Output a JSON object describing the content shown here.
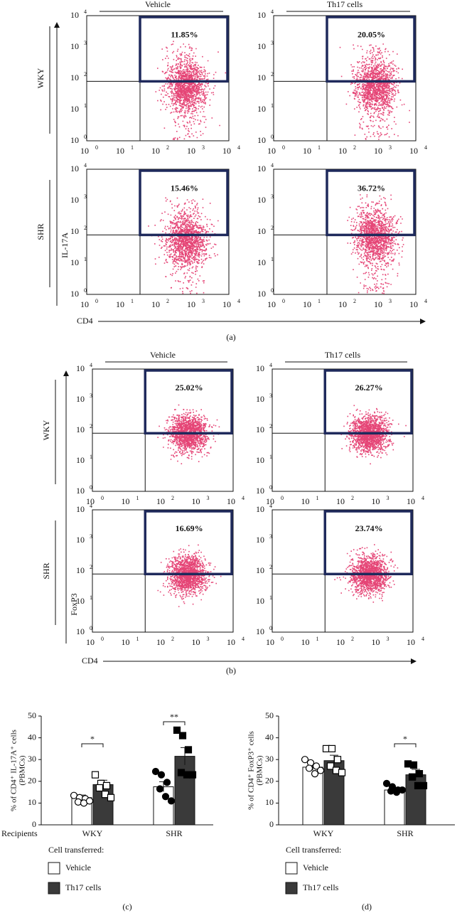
{
  "flow_axis_ticks": {
    "base": "10",
    "exponents": [
      "0",
      "1",
      "2",
      "3",
      "4"
    ]
  },
  "panel_a": {
    "headers": [
      "Vehicle",
      "Th17 cells"
    ],
    "rows": [
      "WKY",
      "SHR"
    ],
    "y_label": "IL-17A",
    "x_label": "CD4",
    "gates": [
      [
        "11.85%",
        "20.05%"
      ],
      [
        "15.46%",
        "36.72%"
      ]
    ],
    "caption": "(a)"
  },
  "panel_b": {
    "headers": [
      "Vehicle",
      "Th17 cells"
    ],
    "rows": [
      "WKY",
      "SHR"
    ],
    "y_label": "FoxP3",
    "x_label": "CD4",
    "gates": [
      [
        "25.02%",
        "26.27%"
      ],
      [
        "16.69%",
        "23.74%"
      ]
    ],
    "caption": "(b)"
  },
  "chart_data": [
    {
      "type": "bar",
      "y_label": [
        "% of CD4⁺ IL-17A⁺ cells",
        "(PBMCs)"
      ],
      "x_label": "Recipients",
      "categories": [
        "WKY",
        "SHR"
      ],
      "ylim": [
        0,
        50
      ],
      "yticks": [
        0,
        10,
        20,
        30,
        40,
        50
      ],
      "series": [
        {
          "name": "Vehicle",
          "color": "#ffffff",
          "values": [
            12.5,
            17.5
          ],
          "errors": [
            1.2,
            2.3
          ],
          "points": [
            [
              13.5,
              12.5,
              12,
              10.5,
              10,
              11
            ],
            [
              24.5,
              23,
              19.5,
              16.5,
              13,
              11
            ]
          ]
        },
        {
          "name": "Th17 cells",
          "color": "#3a3a3a",
          "values": [
            18.5,
            31.5
          ],
          "errors": [
            2,
            4
          ],
          "points": [
            [
              23,
              19,
              18,
              17,
              14,
              12.5
            ],
            [
              43.5,
              41,
              34.5,
              24,
              23,
              23
            ]
          ]
        }
      ],
      "significance": [
        "*",
        "**"
      ],
      "legend_title": "Cell transferred:",
      "caption": "(c)"
    },
    {
      "type": "bar",
      "y_label": [
        "% of CD4⁺ FoxP3⁺ cells",
        "(PBMCs)"
      ],
      "categories": [
        "WKY",
        "SHR"
      ],
      "ylim": [
        0,
        50
      ],
      "yticks": [
        0,
        10,
        20,
        30,
        40,
        50
      ],
      "series": [
        {
          "name": "Vehicle",
          "color": "#ffffff",
          "values": [
            26.5,
            16
          ],
          "errors": [
            1.5,
            1
          ],
          "points": [
            [
              30,
              28.5,
              27,
              26,
              23.5,
              25
            ],
            [
              19,
              17.5,
              16,
              15.5,
              15,
              16
            ]
          ]
        },
        {
          "name": "Th17 cells",
          "color": "#3a3a3a",
          "values": [
            29.5,
            23
          ],
          "errors": [
            2.5,
            2.5
          ],
          "points": [
            [
              35,
              35,
              30,
              27,
              25,
              24
            ],
            [
              28,
              27.5,
              23.5,
              22,
              18,
              18
            ]
          ]
        }
      ],
      "significance": [
        null,
        "*"
      ],
      "legend_title": "Cell transferred:",
      "caption": "(d)"
    }
  ]
}
